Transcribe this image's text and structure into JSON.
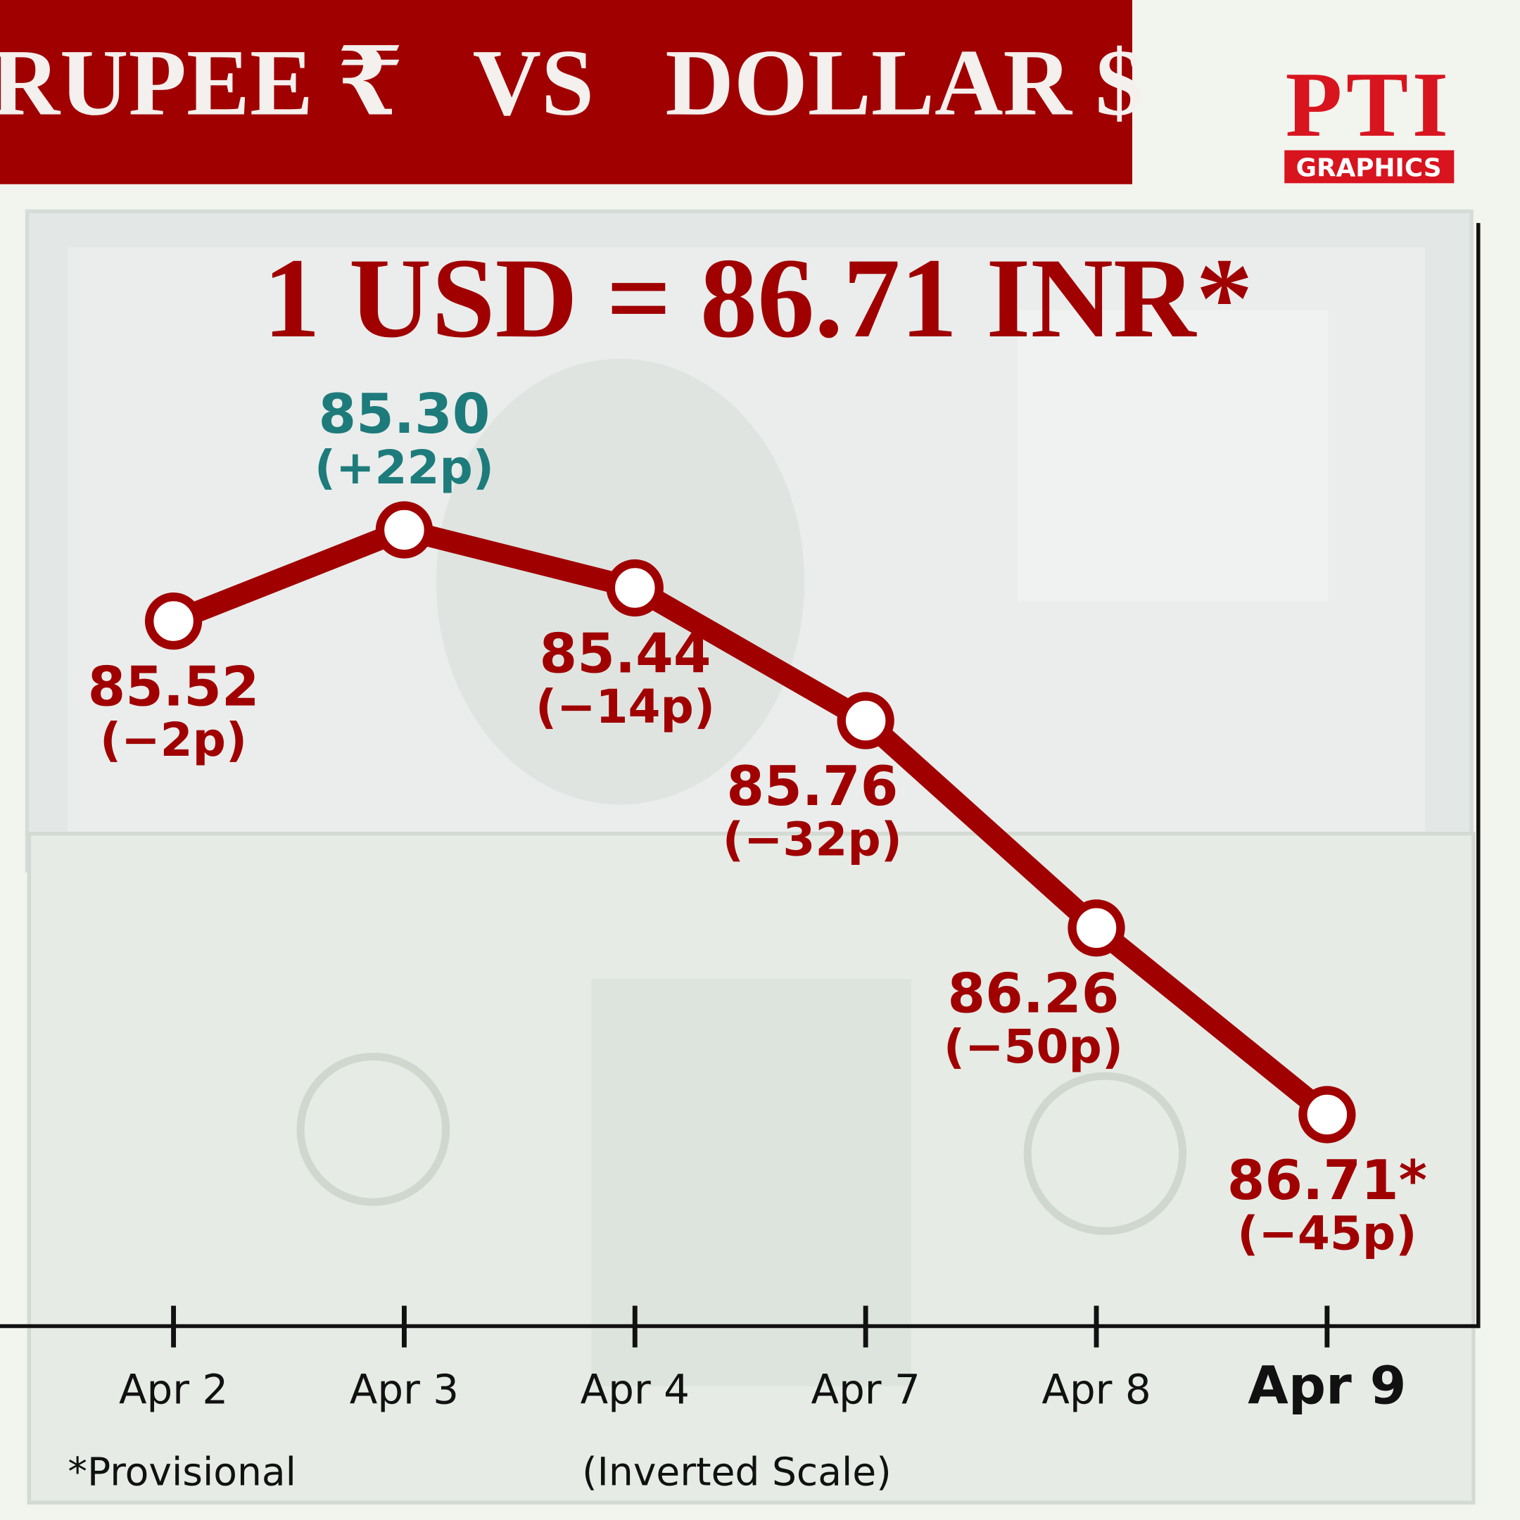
{
  "header": {
    "title": "RUPEE ₹   VS   DOLLAR $",
    "logo": "PTI",
    "logo_sub": "GRAPHICS"
  },
  "chart_data": {
    "type": "line",
    "title": "1 USD = 86.71 INR*",
    "categories": [
      "Apr 2",
      "Apr 3",
      "Apr 4",
      "Apr 7",
      "Apr 8",
      "Apr 9"
    ],
    "bold_labels": [
      false,
      false,
      false,
      false,
      false,
      true
    ],
    "series": [
      {
        "color": "#a00000",
        "values": [
          85.52,
          85.3,
          85.44,
          85.76,
          86.26,
          86.71
        ],
        "value_labels": [
          "85.52",
          "85.30",
          "85.44",
          "85.76",
          "86.26",
          "86.71*"
        ],
        "change_labels": [
          "(−2p)",
          "(+22p)",
          "(−14p)",
          "(−32p)",
          "(−50p)",
          "(−45p)"
        ],
        "label_colors": [
          "#a00000",
          "#1e7b7b",
          "#a00000",
          "#a00000",
          "#a00000",
          "#a00000"
        ],
        "label_positions": [
          "below",
          "above",
          "below",
          "below",
          "below",
          "below"
        ]
      }
    ],
    "ylim": [
      84.56,
      87.22
    ],
    "inverted": true,
    "footnote": "*Provisional",
    "scale_note": "(Inverted Scale)"
  }
}
